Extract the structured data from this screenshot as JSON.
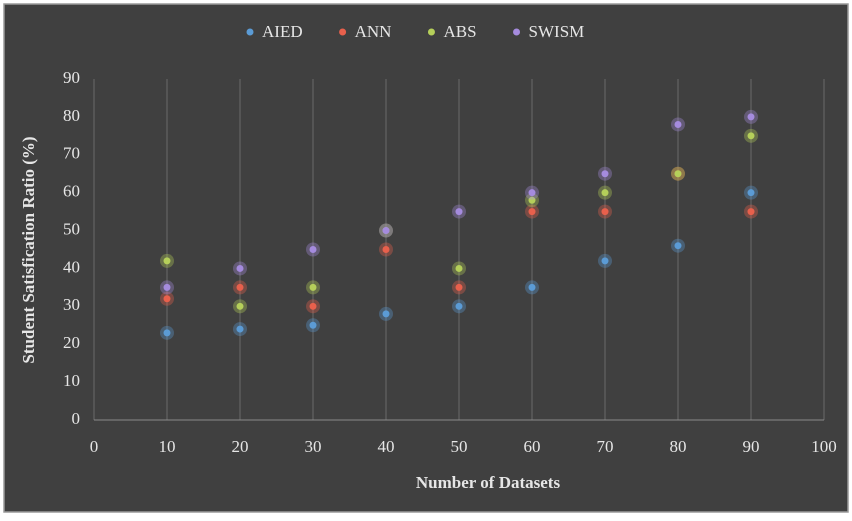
{
  "chart_data": {
    "type": "scatter",
    "x_label": "Number  of Datasets",
    "y_label": "Student  Satisfication Ratio (%)",
    "xlim": [
      0,
      100
    ],
    "xticks": [
      0,
      10,
      20,
      30,
      40,
      50,
      60,
      70,
      80,
      90,
      100
    ],
    "ylim": [
      0,
      90
    ],
    "yticks": [
      0,
      10,
      20,
      30,
      40,
      50,
      60,
      70,
      80,
      90
    ],
    "grid": true,
    "legend": "top",
    "x": [
      10,
      20,
      30,
      40,
      50,
      60,
      70,
      80,
      90
    ],
    "series": [
      {
        "name": "AIED",
        "color": "#5b9bd5",
        "values": [
          23,
          24,
          25,
          28,
          30,
          35,
          42,
          46,
          60
        ]
      },
      {
        "name": "ANN",
        "color": "#e8604c",
        "values": [
          32,
          35,
          30,
          45,
          35,
          55,
          55,
          65,
          55
        ]
      },
      {
        "name": "ABS",
        "color": "#b5cf5a",
        "values": [
          42,
          30,
          35,
          50,
          40,
          58,
          60,
          65,
          75
        ]
      },
      {
        "name": "SWISM",
        "color": "#a58bde",
        "values": [
          35,
          40,
          45,
          50,
          55,
          60,
          65,
          78,
          80
        ]
      }
    ]
  }
}
